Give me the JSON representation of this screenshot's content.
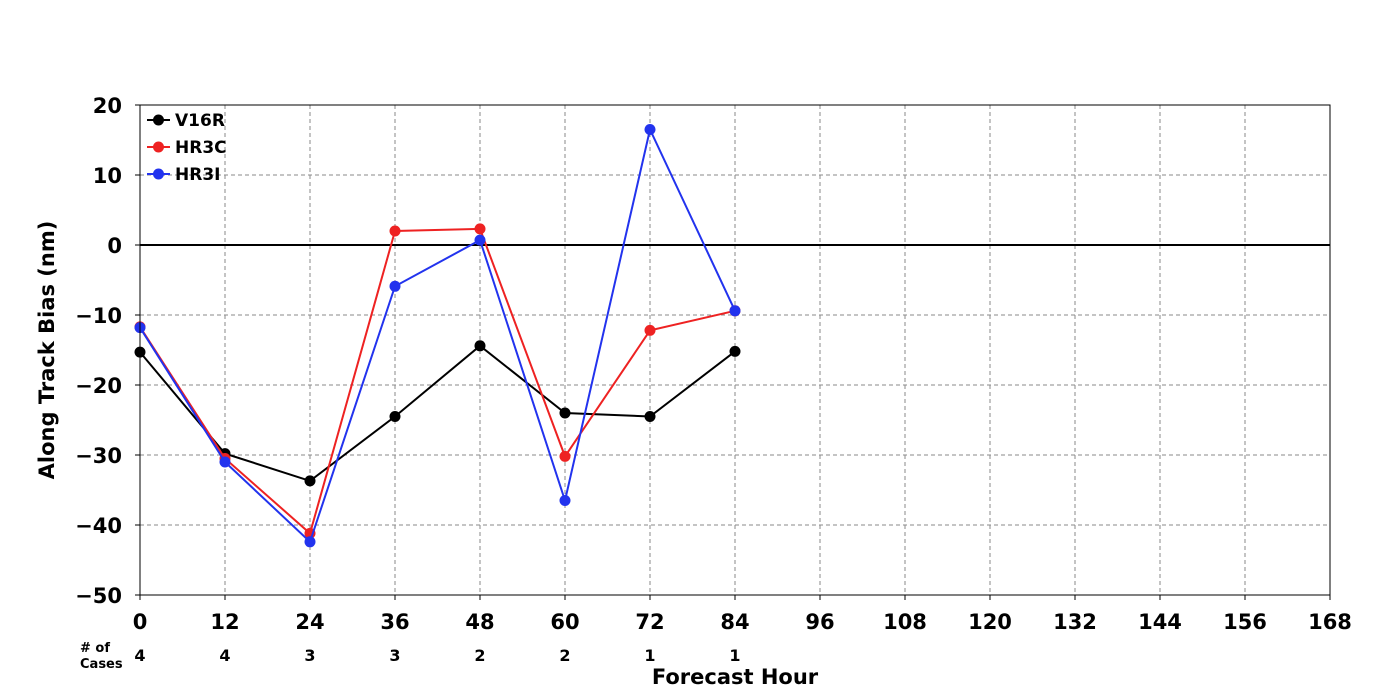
{
  "chart_data": {
    "type": "line",
    "xlabel": "Forecast Hour",
    "ylabel": "Along Track Bias (nm)",
    "xlim": [
      0,
      168
    ],
    "ylim": [
      -50,
      20
    ],
    "xticks": [
      0,
      12,
      24,
      36,
      48,
      60,
      72,
      84,
      96,
      108,
      120,
      132,
      144,
      156,
      168
    ],
    "yticks": [
      -50,
      -40,
      -30,
      -20,
      -10,
      0,
      10,
      20
    ],
    "ytick_labels": [
      "−50",
      "−40",
      "−30",
      "−20",
      "−10",
      "0",
      "10",
      "20"
    ],
    "grid": true,
    "legend": "top-left",
    "x": [
      0,
      12,
      24,
      36,
      48,
      60,
      72,
      84
    ],
    "series": [
      {
        "name": "V16R",
        "color": "#000000",
        "values": [
          -15.3,
          -29.8,
          -33.7,
          -24.5,
          -14.4,
          -24.0,
          -24.5,
          -15.2
        ]
      },
      {
        "name": "HR3C",
        "color": "#ee2222",
        "values": [
          -11.7,
          -30.5,
          -41.2,
          2.0,
          2.3,
          -30.2,
          -12.2,
          -9.4
        ]
      },
      {
        "name": "HR3I",
        "color": "#2233ee",
        "values": [
          -11.8,
          -31.0,
          -42.4,
          -5.9,
          0.7,
          -36.5,
          16.5,
          -9.4
        ]
      }
    ],
    "cases": {
      "label_line1": "# of",
      "label_line2": "Cases",
      "x": [
        0,
        12,
        24,
        36,
        48,
        60,
        72,
        84
      ],
      "values": [
        "4",
        "4",
        "3",
        "3",
        "2",
        "2",
        "1",
        "1"
      ]
    }
  }
}
